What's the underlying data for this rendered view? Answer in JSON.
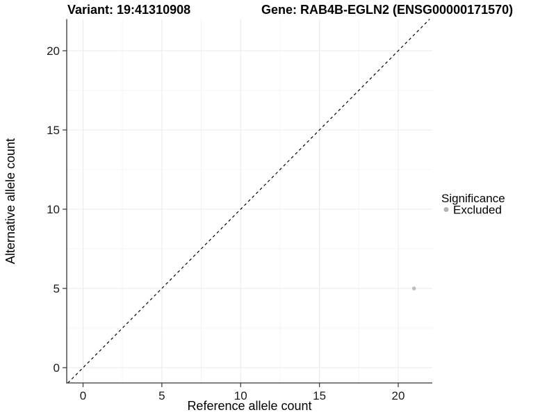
{
  "header": {
    "variant_title": "Variant: 19:41310908",
    "gene_title": "Gene: RAB4B-EGLN2 (ENSG00000171570)"
  },
  "axes": {
    "x": {
      "label": "Reference allele count",
      "ticks": [
        0,
        5,
        10,
        15,
        20
      ]
    },
    "y": {
      "label": "Alternative allele count",
      "ticks": [
        0,
        5,
        10,
        15,
        20
      ]
    }
  },
  "legend": {
    "title": "Significance",
    "items": [
      {
        "label": "Excluded",
        "color": "#b3b3b3"
      }
    ]
  },
  "colors": {
    "grid_major": "#e9e9e9",
    "grid_minor": "#f4f4f4",
    "axis_line": "#333333",
    "reference_line": "#000000",
    "point": "#bdbdbd"
  },
  "chart_data": {
    "type": "scatter",
    "title": "Variant: 19:41310908 | Gene: RAB4B-EGLN2 (ENSG00000171570)",
    "xlabel": "Reference allele count",
    "ylabel": "Alternative allele count",
    "xlim": [
      -1.0,
      22.2
    ],
    "ylim": [
      -1.0,
      22.0
    ],
    "x_ticks": [
      0,
      5,
      10,
      15,
      20
    ],
    "y_ticks": [
      0,
      5,
      10,
      15,
      20
    ],
    "grid": true,
    "legend_position": "right",
    "series": [
      {
        "name": "Excluded",
        "color": "#bdbdbd",
        "points": [
          {
            "x": 21,
            "y": 5
          }
        ]
      }
    ],
    "reference_line": {
      "type": "identity y=x",
      "style": "dashed",
      "color": "#000000"
    }
  }
}
